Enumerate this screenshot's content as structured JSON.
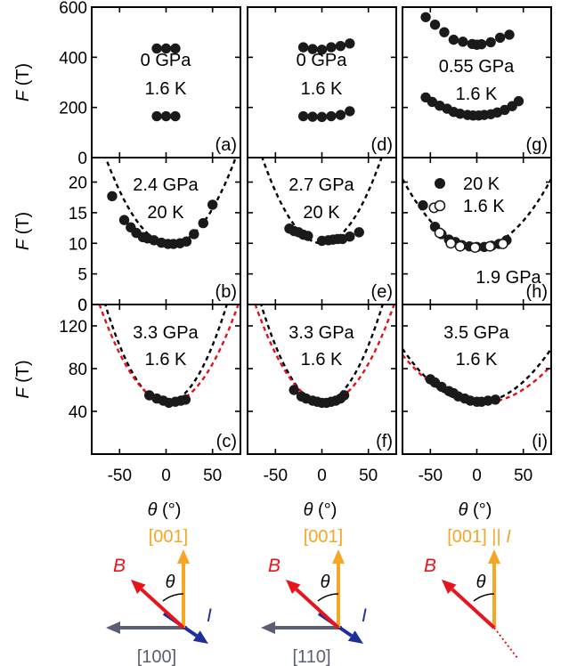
{
  "colors": {
    "axis": "#000000",
    "point": "#1a1a1a",
    "fit_black": "#000000",
    "fit_red": "#e0131c",
    "orange": "#f5a623",
    "field_red": "#e8141c",
    "current_blue": "#1f2f9a",
    "crystal_gray": "#5b5f75"
  },
  "axes": {
    "ylabel_var": "F",
    "ylabel_unit": " (T)",
    "xlabel_var": "θ",
    "xlabel_unit": " (°)",
    "xticks": [
      "-50",
      "0",
      "50"
    ],
    "row_yticks": [
      [
        "600",
        "400",
        "200",
        "0"
      ],
      [
        "20",
        "15",
        "10",
        "5",
        "0"
      ],
      [
        "120",
        "80",
        "40"
      ]
    ]
  },
  "chart_data": [
    {
      "type": "scatter",
      "panel": "(a)",
      "pressure": "0 GPa",
      "temperature": "1.6 K",
      "xlim": [
        -80,
        80
      ],
      "ylim": [
        0,
        600
      ],
      "series": [
        {
          "values": [
            [
              -10,
              435
            ],
            [
              0,
              435
            ],
            [
              10,
              435
            ],
            [
              -10,
              165
            ],
            [
              0,
              165
            ],
            [
              10,
              165
            ]
          ]
        }
      ]
    },
    {
      "type": "scatter",
      "panel": "(b)",
      "pressure": "2.4 GPa",
      "temperature": "20 K",
      "xlim": [
        -80,
        80
      ],
      "ylim": [
        0,
        24
      ],
      "series": [
        {
          "values": [
            [
              -58,
              17.7
            ],
            [
              -45,
              13.8
            ],
            [
              -38,
              12.6
            ],
            [
              -32,
              11.7
            ],
            [
              -25,
              11.0
            ],
            [
              -20,
              10.8
            ],
            [
              -13,
              10.5
            ],
            [
              -5,
              10.1
            ],
            [
              2,
              9.9
            ],
            [
              8,
              9.9
            ],
            [
              15,
              10.0
            ],
            [
              22,
              10.3
            ],
            [
              30,
              11.5
            ],
            [
              40,
              13.3
            ],
            [
              50,
              16.3
            ]
          ]
        }
      ],
      "fits": [
        {
          "color": "black",
          "center": 5,
          "min": 9.8,
          "k": 0.0029
        }
      ]
    },
    {
      "type": "scatter",
      "panel": "(c)",
      "pressure": "3.3 GPa",
      "temperature": "1.6 K",
      "xlim": [
        -80,
        80
      ],
      "ylim": [
        0,
        140
      ],
      "series": [
        {
          "values": [
            [
              -18,
              55
            ],
            [
              -10,
              52
            ],
            [
              -3,
              50
            ],
            [
              3,
              48
            ],
            [
              10,
              49
            ],
            [
              16,
              50
            ],
            [
              21,
              51
            ]
          ]
        }
      ],
      "fits": [
        {
          "color": "black",
          "center": 0,
          "min": 48,
          "k": 0.0215
        },
        {
          "color": "red",
          "center": 3,
          "min": 48,
          "k": 0.0165
        }
      ]
    },
    {
      "type": "scatter",
      "panel": "(d)",
      "pressure": "0 GPa",
      "temperature": "1.6 K",
      "xlim": [
        -80,
        80
      ],
      "ylim": [
        0,
        600
      ],
      "series": [
        {
          "values": [
            [
              -20,
              440
            ],
            [
              -10,
              433
            ],
            [
              0,
              430
            ],
            [
              10,
              440
            ],
            [
              20,
              445
            ],
            [
              30,
              455
            ],
            [
              -20,
              165
            ],
            [
              -10,
              163
            ],
            [
              0,
              162
            ],
            [
              10,
              165
            ],
            [
              20,
              170
            ],
            [
              30,
              185
            ]
          ]
        }
      ]
    },
    {
      "type": "scatter",
      "panel": "(e)",
      "pressure": "2.7 GPa",
      "temperature": "20 K",
      "xlim": [
        -80,
        80
      ],
      "ylim": [
        0,
        24
      ],
      "series": [
        {
          "values": [
            [
              -35,
              12.4
            ],
            [
              -30,
              12.0
            ],
            [
              -25,
              11.8
            ],
            [
              -20,
              11.4
            ],
            [
              -15,
              11.2
            ],
            [
              0,
              10.4
            ],
            [
              7,
              10.5
            ],
            [
              12,
              10.6
            ],
            [
              17,
              10.7
            ],
            [
              22,
              10.7
            ],
            [
              30,
              11.1
            ],
            [
              40,
              11.8
            ]
          ]
        }
      ],
      "fits": [
        {
          "color": "black",
          "center": 0,
          "min": 10.0,
          "k": 0.0034
        }
      ]
    },
    {
      "type": "scatter",
      "panel": "(f)",
      "pressure": "3.3 GPa",
      "temperature": "1.6 K",
      "xlim": [
        -80,
        80
      ],
      "ylim": [
        0,
        140
      ],
      "series": [
        {
          "values": [
            [
              -30,
              60
            ],
            [
              -22,
              54
            ],
            [
              -17,
              52
            ],
            [
              -10,
              50
            ],
            [
              -5,
              49
            ],
            [
              0,
              48
            ],
            [
              5,
              48
            ],
            [
              10,
              49
            ],
            [
              15,
              50
            ],
            [
              20,
              52
            ],
            [
              24,
              55
            ]
          ]
        }
      ],
      "fits": [
        {
          "color": "black",
          "center": 0,
          "min": 48,
          "k": 0.0215
        },
        {
          "color": "red",
          "center": 3,
          "min": 48,
          "k": 0.0165
        }
      ]
    },
    {
      "type": "scatter",
      "panel": "(g)",
      "pressure": "0.55 GPa",
      "temperature": "1.6 K",
      "xlim": [
        -80,
        80
      ],
      "ylim": [
        0,
        600
      ],
      "series": [
        {
          "values": [
            [
              -55,
              560
            ],
            [
              -45,
              530
            ],
            [
              -35,
              500
            ],
            [
              -25,
              470
            ],
            [
              -15,
              462
            ],
            [
              -5,
              453
            ],
            [
              0,
              450
            ],
            [
              5,
              452
            ],
            [
              15,
              460
            ],
            [
              25,
              478
            ],
            [
              35,
              490
            ],
            [
              -55,
              240
            ],
            [
              -48,
              222
            ],
            [
              -40,
              207
            ],
            [
              -32,
              195
            ],
            [
              -25,
              182
            ],
            [
              -18,
              175
            ],
            [
              -10,
              170
            ],
            [
              -4,
              168
            ],
            [
              2,
              168
            ],
            [
              8,
              170
            ],
            [
              15,
              173
            ],
            [
              22,
              180
            ],
            [
              30,
              190
            ],
            [
              38,
              205
            ],
            [
              45,
              225
            ]
          ]
        }
      ]
    },
    {
      "type": "scatter",
      "panel": "(h)",
      "pressure": "1.9 GPa",
      "xlim": [
        -80,
        80
      ],
      "ylim": [
        0,
        24
      ],
      "legend": [
        {
          "label": "20 K",
          "marker": "filled"
        },
        {
          "label": "1.6 K",
          "marker": "open"
        }
      ],
      "series": [
        {
          "name": "20 K",
          "values": [
            [
              -58,
              16.2
            ],
            [
              -45,
              12.7
            ],
            [
              -38,
              11.5
            ],
            [
              -30,
              10.6
            ],
            [
              -23,
              10.2
            ],
            [
              -16,
              9.7
            ],
            [
              -8,
              9.5
            ],
            [
              0,
              9.4
            ],
            [
              8,
              9.4
            ],
            [
              16,
              9.6
            ],
            [
              24,
              9.9
            ],
            [
              32,
              10.5
            ]
          ]
        },
        {
          "name": "1.6 K",
          "values": [
            [
              -46,
              15.8
            ],
            [
              -40,
              11.7
            ],
            [
              -28,
              10.0
            ],
            [
              -18,
              9.5
            ],
            [
              -2,
              9.3
            ],
            [
              14,
              9.5
            ],
            [
              28,
              9.9
            ]
          ]
        }
      ],
      "fits": [
        {
          "color": "black",
          "center": 0,
          "min": 9.3,
          "k": 0.00175
        }
      ]
    },
    {
      "type": "scatter",
      "panel": "(i)",
      "pressure": "3.5 GPa",
      "temperature": "1.6 K",
      "xlim": [
        -80,
        80
      ],
      "ylim": [
        0,
        140
      ],
      "series": [
        {
          "values": [
            [
              -50,
              70
            ],
            [
              -45,
              67
            ],
            [
              -38,
              63
            ],
            [
              -30,
              59
            ],
            [
              -25,
              57
            ],
            [
              -20,
              54
            ],
            [
              -13,
              52
            ],
            [
              -7,
              50
            ],
            [
              0,
              49
            ],
            [
              5,
              49
            ],
            [
              12,
              50
            ],
            [
              20,
              51
            ]
          ]
        }
      ],
      "fits": [
        {
          "color": "black",
          "center": 0,
          "min": 48,
          "k": 0.0079
        },
        {
          "color": "red",
          "center": 5,
          "min": 48,
          "k": 0.0062
        }
      ]
    }
  ],
  "diagrams": [
    {
      "top_label": "[001]",
      "field": "B",
      "theta": "θ",
      "current": "I",
      "crystal": "[100]"
    },
    {
      "top_label": "[001]",
      "field": "B",
      "theta": "θ",
      "current": "I",
      "crystal": "[110]"
    },
    {
      "top_label_main": "[001] || ",
      "top_label_italic": "I",
      "field": "B",
      "theta": "θ"
    }
  ]
}
